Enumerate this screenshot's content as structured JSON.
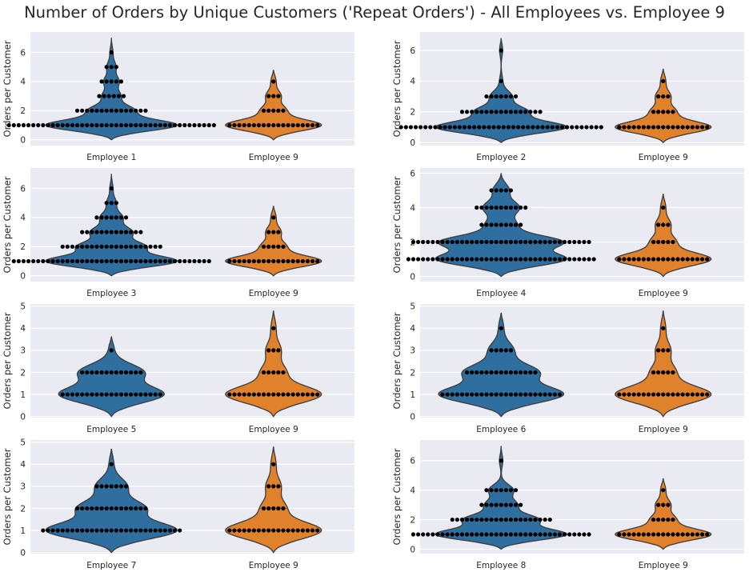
{
  "title": "Number of Orders by Unique Customers ('Repeat Orders') - All Employees vs. Employee 9",
  "colors": {
    "employee": "#2f6f9f",
    "comparison": "#e0812b",
    "background": "#eaeaf2",
    "grid": "#ffffff",
    "outline": "#3b3b3b",
    "dot": "#000000"
  },
  "chart_data": [
    {
      "type": "violin",
      "title": "",
      "ylabel": "Orders per Customer",
      "categories": [
        "Employee 1",
        "Employee 9"
      ],
      "ylim": [
        -0.4,
        7.4
      ],
      "yticks": [
        0,
        2,
        4,
        6
      ],
      "series": [
        {
          "name": "Employee 1",
          "max": 7.0,
          "counts": {
            "1": 43,
            "2": 15,
            "3": 6,
            "4": 5,
            "5": 3,
            "6": 1
          }
        },
        {
          "name": "Employee 9",
          "max": 4.8,
          "counts": {
            "1": 19,
            "2": 5,
            "3": 3,
            "4": 1
          }
        }
      ]
    },
    {
      "type": "violin",
      "title": "",
      "ylabel": "Orders per Customer",
      "categories": [
        "Employee 2",
        "Employee 9"
      ],
      "ylim": [
        -0.2,
        7.2
      ],
      "yticks": [
        0,
        2,
        4,
        6
      ],
      "series": [
        {
          "name": "Employee 2",
          "max": 6.8,
          "counts": {
            "1": 42,
            "2": 17,
            "3": 7,
            "4": 1,
            "6": 1
          }
        },
        {
          "name": "Employee 9",
          "max": 4.8,
          "counts": {
            "1": 19,
            "2": 5,
            "3": 3,
            "4": 1
          }
        }
      ]
    },
    {
      "type": "violin",
      "title": "",
      "ylabel": "Orders per Customer",
      "categories": [
        "Employee 3",
        "Employee 9"
      ],
      "ylim": [
        -0.4,
        7.4
      ],
      "yticks": [
        0,
        2,
        4,
        6
      ],
      "series": [
        {
          "name": "Employee 3",
          "max": 7.0,
          "counts": {
            "1": 41,
            "2": 21,
            "3": 13,
            "4": 7,
            "5": 3,
            "6": 1
          }
        },
        {
          "name": "Employee 9",
          "max": 4.8,
          "counts": {
            "1": 19,
            "2": 5,
            "3": 3,
            "4": 1
          }
        }
      ]
    },
    {
      "type": "violin",
      "title": "",
      "ylabel": "Orders per Customer",
      "categories": [
        "Employee 4",
        "Employee 9"
      ],
      "ylim": [
        -0.3,
        6.3
      ],
      "yticks": [
        0,
        2,
        4,
        6
      ],
      "series": [
        {
          "name": "Employee 4",
          "max": 6.0,
          "counts": {
            "1": 39,
            "2": 37,
            "3": 9,
            "4": 11,
            "5": 5
          }
        },
        {
          "name": "Employee 9",
          "max": 4.8,
          "counts": {
            "1": 19,
            "2": 5,
            "3": 3,
            "4": 1
          }
        }
      ]
    },
    {
      "type": "violin",
      "title": "",
      "ylabel": "Orders per Customer",
      "categories": [
        "Employee 5",
        "Employee 9"
      ],
      "ylim": [
        -0.05,
        5.1
      ],
      "yticks": [
        0,
        1,
        2,
        3,
        4,
        5
      ],
      "series": [
        {
          "name": "Employee 5",
          "max": 3.6,
          "counts": {
            "1": 21,
            "2": 13,
            "3": 1
          }
        },
        {
          "name": "Employee 9",
          "max": 4.8,
          "counts": {
            "1": 19,
            "2": 5,
            "3": 3,
            "4": 1
          }
        }
      ]
    },
    {
      "type": "violin",
      "title": "",
      "ylabel": "Orders per Customer",
      "categories": [
        "Employee 6",
        "Employee 9"
      ],
      "ylim": [
        -0.05,
        5.1
      ],
      "yticks": [
        0,
        1,
        2,
        3,
        4,
        5
      ],
      "series": [
        {
          "name": "Employee 6",
          "max": 4.7,
          "counts": {
            "1": 25,
            "2": 15,
            "3": 5,
            "4": 1
          }
        },
        {
          "name": "Employee 9",
          "max": 4.8,
          "counts": {
            "1": 19,
            "2": 5,
            "3": 3,
            "4": 1
          }
        }
      ]
    },
    {
      "type": "violin",
      "title": "",
      "ylabel": "Orders per Customer",
      "categories": [
        "Employee 7",
        "Employee 9"
      ],
      "ylim": [
        -0.05,
        5.1
      ],
      "yticks": [
        0,
        1,
        2,
        3,
        4,
        5
      ],
      "series": [
        {
          "name": "Employee 7",
          "max": 4.7,
          "counts": {
            "1": 29,
            "2": 15,
            "3": 7,
            "4": 1
          }
        },
        {
          "name": "Employee 9",
          "max": 4.8,
          "counts": {
            "1": 19,
            "2": 5,
            "3": 3,
            "4": 1
          }
        }
      ]
    },
    {
      "type": "violin",
      "title": "",
      "ylabel": "Orders per Customer",
      "categories": [
        "Employee 8",
        "Employee 9"
      ],
      "ylim": [
        -0.3,
        7.4
      ],
      "yticks": [
        0,
        2,
        4,
        6
      ],
      "series": [
        {
          "name": "Employee 8",
          "max": 7.0,
          "counts": {
            "1": 37,
            "2": 21,
            "3": 9,
            "4": 7,
            "6": 1
          }
        },
        {
          "name": "Employee 9",
          "max": 4.8,
          "counts": {
            "1": 19,
            "2": 5,
            "3": 3,
            "4": 1
          }
        }
      ]
    }
  ]
}
